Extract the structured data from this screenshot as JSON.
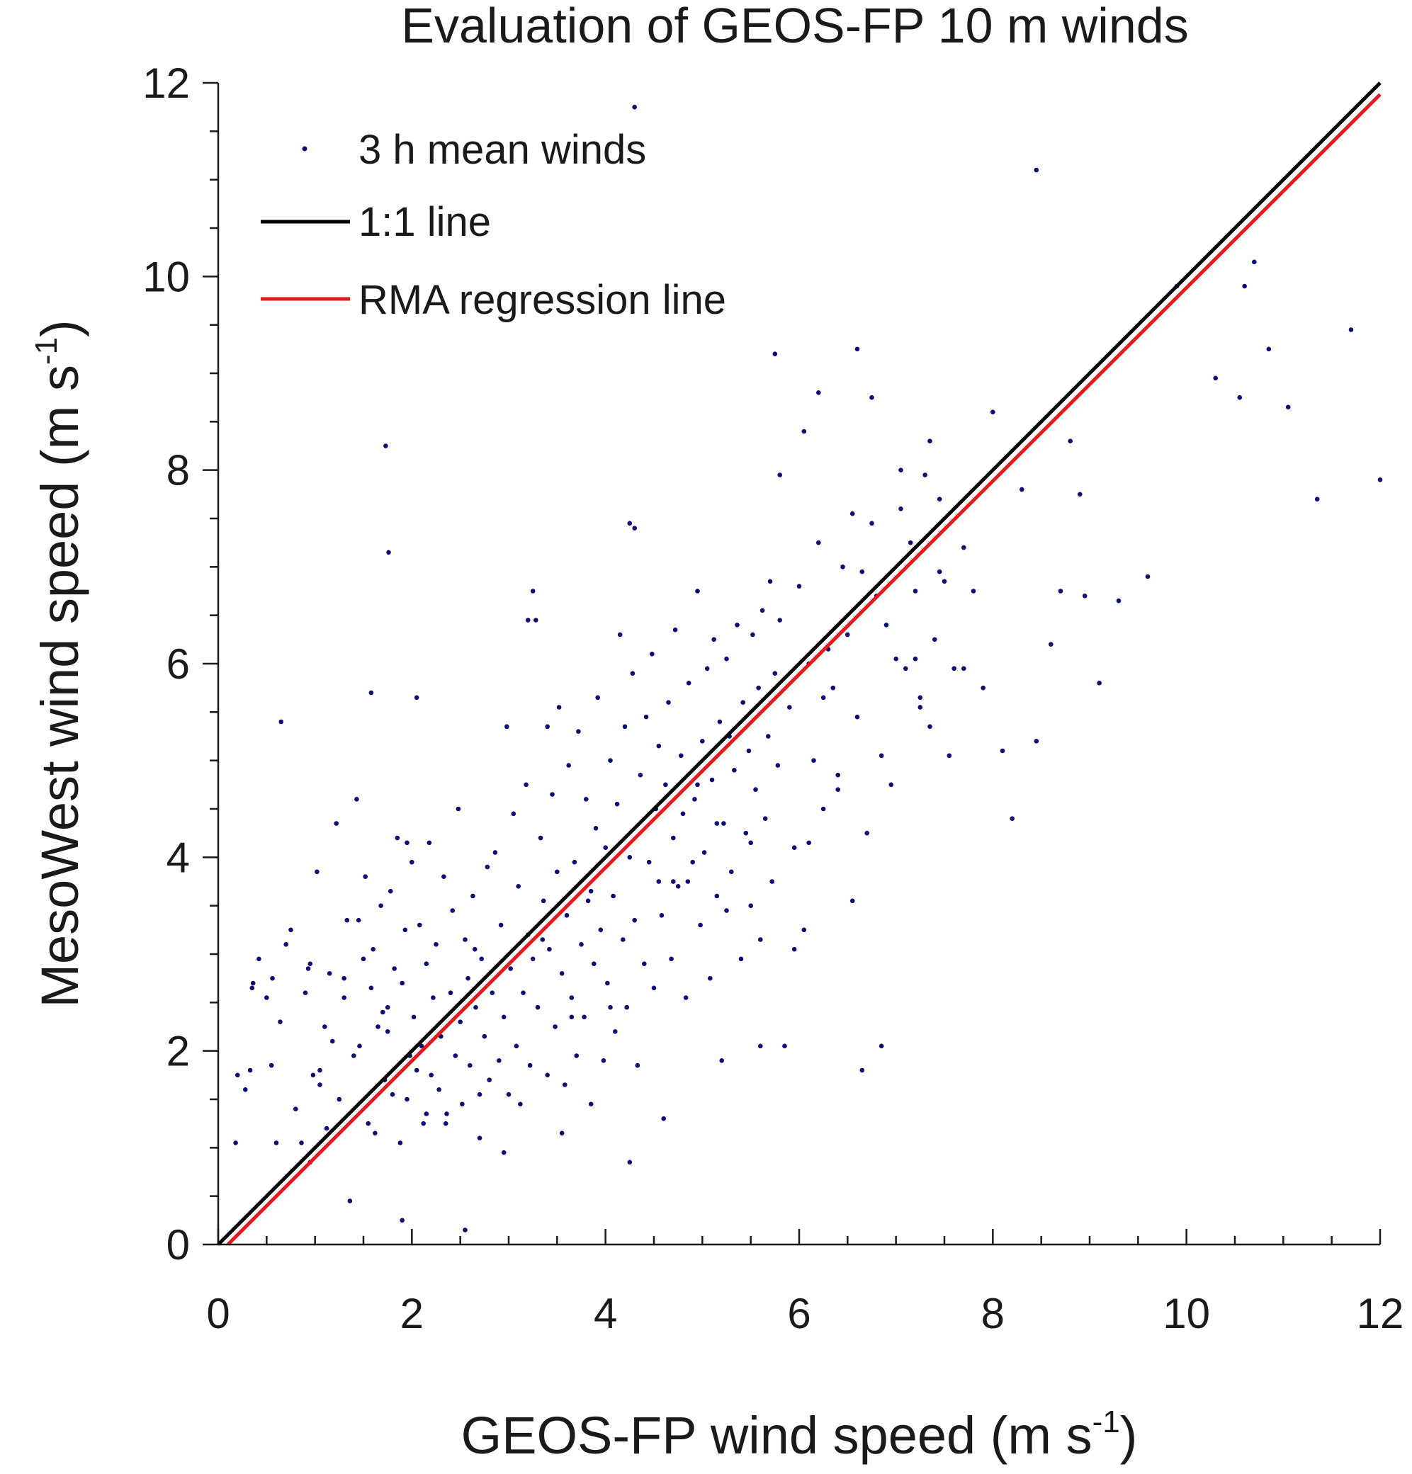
{
  "chart_data": {
    "type": "scatter",
    "title": "Evaluation of GEOS-FP 10 m winds",
    "xlabel": "GEOS-FP wind speed (m s",
    "xlabel_sup": "-1",
    "xlabel_end": ")",
    "ylabel": "MesoWest wind speed (m s",
    "ylabel_sup": "-1",
    "ylabel_end": ")",
    "xlim": [
      0,
      12
    ],
    "ylim": [
      0,
      12
    ],
    "xticks": [
      "0",
      "2",
      "4",
      "6",
      "8",
      "10",
      "12"
    ],
    "yticks": [
      "0",
      "2",
      "4",
      "6",
      "8",
      "10",
      "12"
    ],
    "grid": false,
    "legend_position": "top-left",
    "series": [
      {
        "name": "3 h  mean winds",
        "kind": "points",
        "color": "#0d0d73",
        "x": [
          0.18,
          0.2,
          0.28,
          0.33,
          0.36,
          0.42,
          0.5,
          0.56,
          0.6,
          0.64,
          0.7,
          0.75,
          0.8,
          0.86,
          0.9,
          0.93,
          0.95,
          0.98,
          1.02,
          1.05,
          1.1,
          1.12,
          1.15,
          1.18,
          1.22,
          1.25,
          1.3,
          1.33,
          1.36,
          1.4,
          1.43,
          1.46,
          1.5,
          1.52,
          1.55,
          1.58,
          1.6,
          1.62,
          1.65,
          1.68,
          1.7,
          1.72,
          1.75,
          1.78,
          1.8,
          1.82,
          1.85,
          1.88,
          1.9,
          1.93,
          1.95,
          1.98,
          2.0,
          2.02,
          2.05,
          2.08,
          2.1,
          2.12,
          2.15,
          2.18,
          2.2,
          2.22,
          2.25,
          2.28,
          2.3,
          2.33,
          2.36,
          2.4,
          2.42,
          2.45,
          2.48,
          2.5,
          2.52,
          2.55,
          2.58,
          2.6,
          2.63,
          2.66,
          2.7,
          2.72,
          2.75,
          2.78,
          2.8,
          2.83,
          2.86,
          2.9,
          2.92,
          2.95,
          2.98,
          3.0,
          3.02,
          3.05,
          3.08,
          3.1,
          3.12,
          3.15,
          3.18,
          3.2,
          3.22,
          3.25,
          3.28,
          3.3,
          3.33,
          3.36,
          3.4,
          3.42,
          3.45,
          3.48,
          3.5,
          3.52,
          3.55,
          3.58,
          3.6,
          3.62,
          3.65,
          3.68,
          3.7,
          3.72,
          3.75,
          3.78,
          3.8,
          3.82,
          3.85,
          3.88,
          3.9,
          3.92,
          3.95,
          3.98,
          4.0,
          4.02,
          4.05,
          4.08,
          4.1,
          4.12,
          4.15,
          4.18,
          4.2,
          4.22,
          4.25,
          4.28,
          4.3,
          4.33,
          4.36,
          4.4,
          4.42,
          4.45,
          4.48,
          4.5,
          4.52,
          4.55,
          4.58,
          4.6,
          4.62,
          4.65,
          4.68,
          4.7,
          4.72,
          4.75,
          4.78,
          4.8,
          4.83,
          4.86,
          4.9,
          4.92,
          4.95,
          4.98,
          5.0,
          5.02,
          5.05,
          5.08,
          5.1,
          5.12,
          5.15,
          5.18,
          5.2,
          5.22,
          5.25,
          5.28,
          5.3,
          5.33,
          5.36,
          5.4,
          5.42,
          5.45,
          5.48,
          5.5,
          5.52,
          5.55,
          5.58,
          5.6,
          5.62,
          5.65,
          5.68,
          5.7,
          5.72,
          5.75,
          5.78,
          5.8,
          5.85,
          5.9,
          5.95,
          6.0,
          6.05,
          6.1,
          6.15,
          6.2,
          6.25,
          6.3,
          6.35,
          6.4,
          6.45,
          6.5,
          6.55,
          6.6,
          6.65,
          6.7,
          6.75,
          6.8,
          6.85,
          6.9,
          6.95,
          7.0,
          7.05,
          7.1,
          7.15,
          7.2,
          7.25,
          7.3,
          7.35,
          7.4,
          7.45,
          7.5,
          7.6,
          7.7,
          7.8,
          7.9,
          8.0,
          8.1,
          8.3,
          8.45,
          8.6,
          8.7,
          8.8,
          8.95,
          9.1,
          9.3,
          9.6,
          9.9,
          10.3,
          10.55,
          10.6,
          10.7,
          10.85,
          11.05,
          11.35,
          11.7,
          12.0,
          1.73,
          1.76,
          4.3,
          1.58,
          2.05,
          0.65,
          3.25,
          3.2,
          4.25,
          4.3,
          6.6,
          6.75,
          6.2,
          5.75,
          5.8,
          6.05,
          7.05,
          7.35,
          2.55,
          1.9,
          4.25,
          6.65,
          8.45,
          0.35,
          0.95,
          1.45,
          2.7,
          3.4,
          4.85,
          5.6,
          6.4,
          7.2,
          7.55,
          1.05,
          2.35,
          3.65,
          4.7,
          5.5,
          6.55,
          7.25,
          8.2,
          0.55,
          1.75,
          2.95,
          4.05,
          5.15,
          6.25,
          7.7,
          8.9,
          1.3,
          2.65,
          3.85,
          4.95,
          6.1,
          7.45,
          2.15,
          3.55,
          5.25,
          6.85,
          1.95,
          3.35,
          4.55,
          5.95
        ],
        "y": [
          1.05,
          1.75,
          1.6,
          1.8,
          2.7,
          2.95,
          2.55,
          2.75,
          1.05,
          2.3,
          3.1,
          3.25,
          1.4,
          1.05,
          2.6,
          2.85,
          0.85,
          1.75,
          3.85,
          1.8,
          2.25,
          1.2,
          2.8,
          2.1,
          4.35,
          1.5,
          2.75,
          3.35,
          0.45,
          1.95,
          4.6,
          2.05,
          2.95,
          3.8,
          1.25,
          2.65,
          3.05,
          1.15,
          2.25,
          3.5,
          2.4,
          1.7,
          2.2,
          3.65,
          1.55,
          2.85,
          4.2,
          1.05,
          2.7,
          3.25,
          1.5,
          1.95,
          3.95,
          2.35,
          1.8,
          3.3,
          2.05,
          1.25,
          2.9,
          4.15,
          1.75,
          2.55,
          3.1,
          1.6,
          2.15,
          3.8,
          1.35,
          2.6,
          3.45,
          1.95,
          4.5,
          2.3,
          1.45,
          3.15,
          2.75,
          1.85,
          3.6,
          2.45,
          1.1,
          2.95,
          2.15,
          3.9,
          1.7,
          2.6,
          4.05,
          1.9,
          3.3,
          2.35,
          5.35,
          1.55,
          2.85,
          4.45,
          2.05,
          3.7,
          1.45,
          2.6,
          4.75,
          3.2,
          1.85,
          2.95,
          6.45,
          2.45,
          4.2,
          3.55,
          1.75,
          3.05,
          4.65,
          2.25,
          3.85,
          5.55,
          2.8,
          1.65,
          3.4,
          4.95,
          2.55,
          3.95,
          1.95,
          5.3,
          3.1,
          2.35,
          4.6,
          3.55,
          1.45,
          2.9,
          4.3,
          5.65,
          3.25,
          1.9,
          4.1,
          2.7,
          5.0,
          3.6,
          2.2,
          4.55,
          6.3,
          3.15,
          5.35,
          2.45,
          4.0,
          5.9,
          3.35,
          1.85,
          4.85,
          2.9,
          5.45,
          3.95,
          6.1,
          2.65,
          4.5,
          5.15,
          3.4,
          1.3,
          4.75,
          5.6,
          2.95,
          4.2,
          6.35,
          3.7,
          5.05,
          4.45,
          2.55,
          5.8,
          3.95,
          4.6,
          6.75,
          3.3,
          5.2,
          4.05,
          5.95,
          2.75,
          4.8,
          6.25,
          3.6,
          5.4,
          1.9,
          4.35,
          6.05,
          5.25,
          3.85,
          4.9,
          6.4,
          2.95,
          5.6,
          4.25,
          5.1,
          3.5,
          6.3,
          4.7,
          5.75,
          3.15,
          6.55,
          4.4,
          5.25,
          6.85,
          3.75,
          5.9,
          4.95,
          6.45,
          2.05,
          5.55,
          4.1,
          6.8,
          3.25,
          6.0,
          5.0,
          7.25,
          4.5,
          6.15,
          5.75,
          4.85,
          7.0,
          6.3,
          3.55,
          5.45,
          6.95,
          4.25,
          7.45,
          6.7,
          5.05,
          6.4,
          4.75,
          6.05,
          7.6,
          5.95,
          7.25,
          6.75,
          5.65,
          7.95,
          5.35,
          6.25,
          7.7,
          6.85,
          5.95,
          7.2,
          6.75,
          5.75,
          8.6,
          5.1,
          7.8,
          5.2,
          6.2,
          6.75,
          8.3,
          6.7,
          5.8,
          6.65,
          6.9,
          9.9,
          8.95,
          8.75,
          9.9,
          10.15,
          9.25,
          8.65,
          7.7,
          9.45,
          7.9,
          8.25,
          7.15,
          11.75,
          5.7,
          5.65,
          5.4,
          6.75,
          6.45,
          7.45,
          7.4,
          9.25,
          8.75,
          8.8,
          9.2,
          7.95,
          8.4,
          8.0,
          8.3,
          0.15,
          0.25,
          0.85,
          1.8,
          11.1,
          2.65,
          2.9,
          3.35,
          1.55,
          5.35,
          3.75,
          2.05,
          4.7,
          6.05,
          5.05,
          1.65,
          1.25,
          2.35,
          3.75,
          4.15,
          7.55,
          5.55,
          4.4,
          1.85,
          2.45,
          0.95,
          2.45,
          4.35,
          5.65,
          5.95,
          7.75,
          2.55,
          3.05,
          3.65,
          4.75,
          4.15,
          6.95,
          1.35,
          1.15,
          3.45,
          2.05,
          4.15,
          3.15,
          3.75,
          3.05
        ]
      },
      {
        "name": "1:1 line",
        "kind": "line",
        "color": "#000000",
        "x": [
          0,
          12
        ],
        "y": [
          0,
          12
        ]
      },
      {
        "name": "RMA regression line",
        "kind": "line",
        "color": "#e31a1c",
        "x": [
          0.1,
          12
        ],
        "y": [
          0,
          11.88
        ]
      }
    ]
  }
}
